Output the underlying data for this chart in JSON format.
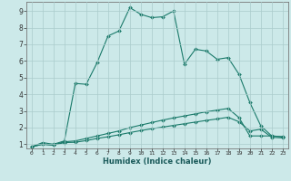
{
  "xlabel": "Humidex (Indice chaleur)",
  "xlim": [
    -0.5,
    23.5
  ],
  "ylim": [
    0.75,
    9.55
  ],
  "xticks": [
    0,
    1,
    2,
    3,
    4,
    5,
    6,
    7,
    8,
    9,
    10,
    11,
    12,
    13,
    14,
    15,
    16,
    17,
    18,
    19,
    20,
    21,
    22,
    23
  ],
  "yticks": [
    1,
    2,
    3,
    4,
    5,
    6,
    7,
    8,
    9
  ],
  "background_color": "#cce9e9",
  "grid_color": "#aacccc",
  "line_color": "#1a7a6a",
  "line1_x": [
    0,
    1,
    2,
    3,
    4,
    5,
    6,
    7,
    8,
    9,
    10,
    11,
    12,
    13,
    14,
    15,
    16,
    17,
    18,
    19,
    20,
    21,
    22,
    23
  ],
  "line1_y": [
    0.85,
    1.1,
    1.0,
    1.2,
    4.65,
    4.6,
    5.9,
    7.5,
    7.8,
    9.2,
    8.8,
    8.6,
    8.65,
    9.0,
    5.8,
    6.7,
    6.6,
    6.1,
    6.2,
    5.2,
    3.5,
    2.1,
    1.5,
    1.45
  ],
  "line2_x": [
    0,
    1,
    2,
    3,
    4,
    5,
    6,
    7,
    8,
    9,
    10,
    11,
    12,
    13,
    14,
    15,
    16,
    17,
    18,
    19,
    20,
    21,
    22,
    23
  ],
  "line2_y": [
    0.85,
    1.0,
    0.95,
    1.15,
    1.2,
    1.35,
    1.5,
    1.65,
    1.8,
    2.0,
    2.15,
    2.3,
    2.45,
    2.58,
    2.7,
    2.82,
    2.95,
    3.05,
    3.15,
    2.6,
    1.5,
    1.5,
    1.5,
    1.45
  ],
  "line3_x": [
    0,
    1,
    2,
    3,
    4,
    5,
    6,
    7,
    8,
    9,
    10,
    11,
    12,
    13,
    14,
    15,
    16,
    17,
    18,
    19,
    20,
    21,
    22,
    23
  ],
  "line3_y": [
    0.85,
    1.0,
    0.95,
    1.1,
    1.12,
    1.22,
    1.35,
    1.45,
    1.57,
    1.7,
    1.82,
    1.93,
    2.03,
    2.13,
    2.23,
    2.33,
    2.43,
    2.52,
    2.62,
    2.35,
    1.8,
    1.9,
    1.42,
    1.38
  ]
}
